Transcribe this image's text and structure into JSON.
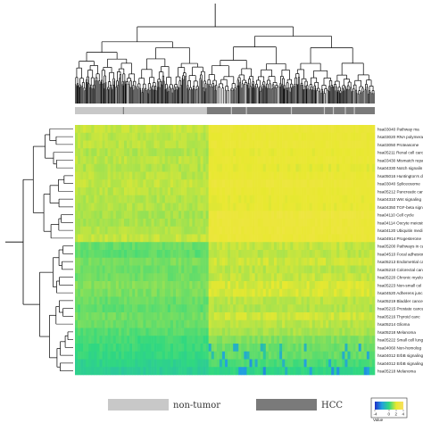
{
  "chart_data": {
    "type": "heatmap",
    "title": "",
    "xlabel": "",
    "ylabel": "",
    "column_groups": [
      {
        "name": "non-tumor",
        "color": "#c8c8c8",
        "fraction": 0.44
      },
      {
        "name": "HCC",
        "color": "#7a7a7a",
        "fraction": 0.56
      }
    ],
    "rows": [
      {
        "label": "hsa03040 Pathway ma",
        "non_tumor": 1.6,
        "hcc": 2.3
      },
      {
        "label": "hsa03020 RNA polymerase",
        "non_tumor": 1.5,
        "hcc": 2.2
      },
      {
        "label": "hsa03050 Proteasome",
        "non_tumor": 1.5,
        "hcc": 2.3
      },
      {
        "label": "hsa05211 Renal cell carci",
        "non_tumor": 1.4,
        "hcc": 2.1
      },
      {
        "label": "hsa03430 Mismatch repai",
        "non_tumor": 1.5,
        "hcc": 2.2
      },
      {
        "label": "hsa04330 Notch signalin",
        "non_tumor": 1.4,
        "hcc": 2.0
      },
      {
        "label": "hsa05016 Huntington's dis",
        "non_tumor": 1.5,
        "hcc": 2.2
      },
      {
        "label": "hsa03040 Spliceosome",
        "non_tumor": 1.6,
        "hcc": 2.4
      },
      {
        "label": "hsa05212 Pancreatic can",
        "non_tumor": 1.5,
        "hcc": 2.2
      },
      {
        "label": "hsa04310 Wnt signaling",
        "non_tumor": 1.4,
        "hcc": 2.1
      },
      {
        "label": "hsa04350 TGF-beta sign",
        "non_tumor": 1.4,
        "hcc": 2.1
      },
      {
        "label": "hsa04110 Cell cycle",
        "non_tumor": 1.3,
        "hcc": 2.5
      },
      {
        "label": "hsa04114 Oocyte meiosis",
        "non_tumor": 1.3,
        "hcc": 2.4
      },
      {
        "label": "hsa04120 Ubiquitin medi",
        "non_tumor": 1.4,
        "hcc": 2.4
      },
      {
        "label": "hsa04914 Progesterone",
        "non_tumor": 1.6,
        "hcc": 2.3
      },
      {
        "label": "hsa05200 Pathways in ca",
        "non_tumor": 0.6,
        "hcc": 1.6
      },
      {
        "label": "hsa04510 Focal adhesion",
        "non_tumor": 0.5,
        "hcc": 1.5
      },
      {
        "label": "hsa05213 Endometrial ca",
        "non_tumor": 0.8,
        "hcc": 1.7
      },
      {
        "label": "hsa05210 Colorectal can",
        "non_tumor": 0.7,
        "hcc": 1.5
      },
      {
        "label": "hsa05220 Chronic myelo",
        "non_tumor": 0.7,
        "hcc": 1.6
      },
      {
        "label": "hsa05223 Non-small cel",
        "non_tumor": 0.9,
        "hcc": 1.8
      },
      {
        "label": "hsa04520 Adherens junc",
        "non_tumor": 0.8,
        "hcc": 1.8
      },
      {
        "label": "hsa05219 Bladder cance",
        "non_tumor": 0.6,
        "hcc": 1.5
      },
      {
        "label": "hsa05215 Prostate cance",
        "non_tumor": 0.5,
        "hcc": 1.4
      },
      {
        "label": "hsa05216 Thyroid canc",
        "non_tumor": 0.7,
        "hcc": 1.7
      },
      {
        "label": "hsa05214 Glioma",
        "non_tumor": 0.6,
        "hcc": 1.5
      },
      {
        "label": "hsa05218 Melanoma",
        "non_tumor": 0.4,
        "hcc": 1.3
      },
      {
        "label": "hsa05222 Small cell lung",
        "non_tumor": 0.2,
        "hcc": 0.9
      },
      {
        "label": "hsa04060 Non-homolog",
        "non_tumor": 0.1,
        "hcc": 0.7
      },
      {
        "label": "hsa04012 ErbB signaling",
        "non_tumor": 0.0,
        "hcc": 0.6
      },
      {
        "label": "hsa04012 ErbB signaling",
        "non_tumor": -0.2,
        "hcc": 0.3
      },
      {
        "label": "hsa05218 Melanoma",
        "non_tumor": -0.4,
        "hcc": -0.1
      }
    ],
    "colorbar": {
      "label": "Value",
      "ticks": [
        -4,
        0,
        2,
        4
      ],
      "range": [
        -4,
        4
      ],
      "colors": [
        "#2030c8",
        "#22a0e0",
        "#30d880",
        "#e8e830",
        "#f8e060"
      ]
    },
    "row_dendrogram": true,
    "column_dendrogram": true,
    "legend_placement": "bottom"
  }
}
